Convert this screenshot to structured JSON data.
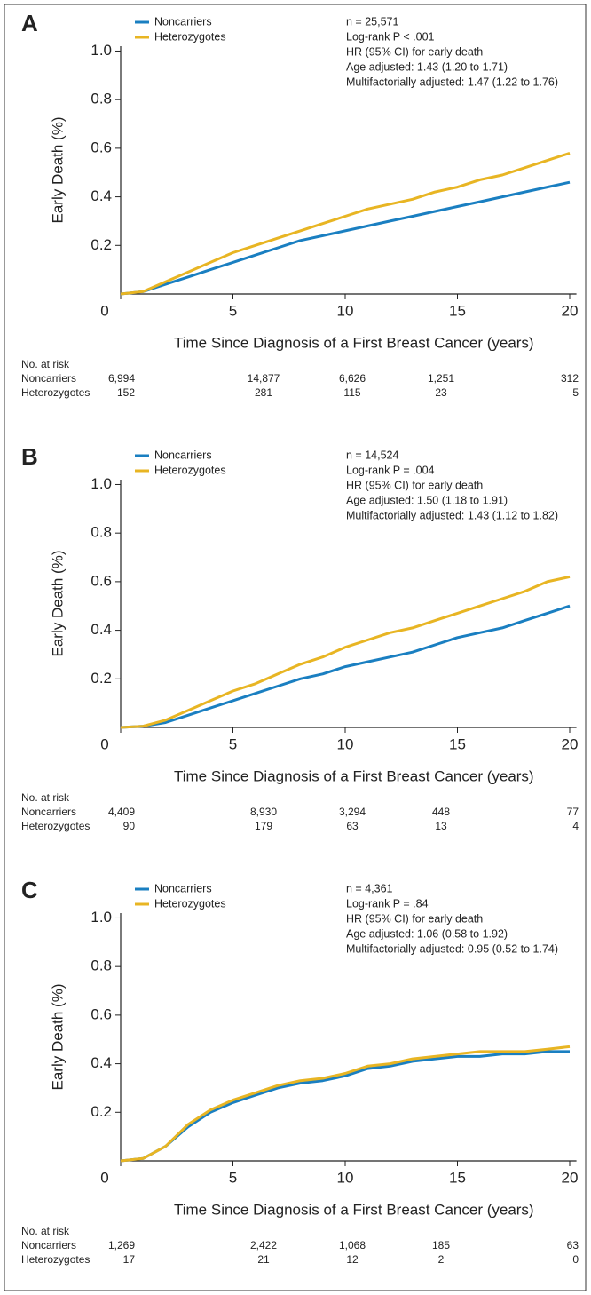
{
  "chart_data": [
    {
      "type": "line",
      "panel": "A",
      "x": [
        0,
        1,
        2,
        3,
        4,
        5,
        6,
        7,
        8,
        9,
        10,
        11,
        12,
        13,
        14,
        15,
        16,
        17,
        18,
        19,
        20
      ],
      "series": [
        {
          "name": "Noncarriers",
          "color": "#1a7fc1",
          "values": [
            0,
            0.01,
            0.04,
            0.07,
            0.1,
            0.13,
            0.16,
            0.19,
            0.22,
            0.24,
            0.26,
            0.28,
            0.3,
            0.32,
            0.34,
            0.36,
            0.38,
            0.4,
            0.42,
            0.44,
            0.46
          ]
        },
        {
          "name": "Heterozygotes",
          "color": "#e8b523",
          "values": [
            0,
            0.01,
            0.05,
            0.09,
            0.13,
            0.17,
            0.2,
            0.23,
            0.26,
            0.29,
            0.32,
            0.35,
            0.37,
            0.39,
            0.42,
            0.44,
            0.47,
            0.49,
            0.52,
            0.55,
            0.58
          ]
        }
      ],
      "xlabel": "Time Since Diagnosis of a First Breast Cancer (years)",
      "ylabel": "Early Death (%)",
      "xlim": [
        0,
        20.3
      ],
      "ylim": [
        0,
        1.02
      ],
      "xticks": [
        0,
        5,
        10,
        15,
        20
      ],
      "yticks": [
        0.2,
        0.4,
        0.6,
        0.8,
        {
          "value": 1,
          "label": "1.0"
        }
      ],
      "annotations": [
        "n = 25,571",
        "Log-rank P < .001",
        "HR (95% CI) for early death",
        "Age adjusted: 1.43 (1.20 to 1.71)",
        "Multifactorially adjusted: 1.47 (1.22 to 1.76)"
      ],
      "risk_table": {
        "title": "No. at risk",
        "rows": [
          {
            "name": "Noncarriers",
            "values": [
              "6,994",
              "14,877",
              "6,626",
              "1,251",
              "312"
            ]
          },
          {
            "name": "Heterozygotes",
            "values": [
              "152",
              "281",
              "115",
              "23",
              "5"
            ]
          }
        ]
      }
    },
    {
      "type": "line",
      "panel": "B",
      "x": [
        0,
        1,
        2,
        3,
        4,
        5,
        6,
        7,
        8,
        9,
        10,
        11,
        12,
        13,
        14,
        15,
        16,
        17,
        18,
        19,
        20
      ],
      "series": [
        {
          "name": "Noncarriers",
          "color": "#1a7fc1",
          "values": [
            0,
            0.005,
            0.02,
            0.05,
            0.08,
            0.11,
            0.14,
            0.17,
            0.2,
            0.22,
            0.25,
            0.27,
            0.29,
            0.31,
            0.34,
            0.37,
            0.39,
            0.41,
            0.44,
            0.47,
            0.5
          ]
        },
        {
          "name": "Heterozygotes",
          "color": "#e8b523",
          "values": [
            0,
            0.005,
            0.03,
            0.07,
            0.11,
            0.15,
            0.18,
            0.22,
            0.26,
            0.29,
            0.33,
            0.36,
            0.39,
            0.41,
            0.44,
            0.47,
            0.5,
            0.53,
            0.56,
            0.6,
            0.62
          ]
        }
      ],
      "xlabel": "Time Since Diagnosis of a First Breast Cancer (years)",
      "ylabel": "Early Death (%)",
      "xlim": [
        0,
        20.3
      ],
      "ylim": [
        0,
        1.02
      ],
      "xticks": [
        0,
        5,
        10,
        15,
        20
      ],
      "yticks": [
        0.2,
        0.4,
        0.6,
        0.8,
        {
          "value": 1,
          "label": "1.0"
        }
      ],
      "annotations": [
        "n = 14,524",
        "Log-rank P = .004",
        "HR (95% CI) for early death",
        "Age adjusted: 1.50 (1.18 to 1.91)",
        "Multifactorially adjusted: 1.43 (1.12 to 1.82)"
      ],
      "risk_table": {
        "title": "No. at risk",
        "rows": [
          {
            "name": "Noncarriers",
            "values": [
              "4,409",
              "8,930",
              "3,294",
              "448",
              "77"
            ]
          },
          {
            "name": "Heterozygotes",
            "values": [
              "90",
              "179",
              "63",
              "13",
              "4"
            ]
          }
        ]
      }
    },
    {
      "type": "line",
      "panel": "C",
      "x": [
        0,
        1,
        2,
        3,
        4,
        5,
        6,
        7,
        8,
        9,
        10,
        11,
        12,
        13,
        14,
        15,
        16,
        17,
        18,
        19,
        20
      ],
      "series": [
        {
          "name": "Noncarriers",
          "color": "#1a7fc1",
          "values": [
            0,
            0.01,
            0.06,
            0.14,
            0.2,
            0.24,
            0.27,
            0.3,
            0.32,
            0.33,
            0.35,
            0.38,
            0.39,
            0.41,
            0.42,
            0.43,
            0.43,
            0.44,
            0.44,
            0.45,
            0.45
          ]
        },
        {
          "name": "Heterozygotes",
          "color": "#e8b523",
          "values": [
            0,
            0.01,
            0.06,
            0.15,
            0.21,
            0.25,
            0.28,
            0.31,
            0.33,
            0.34,
            0.36,
            0.39,
            0.4,
            0.42,
            0.43,
            0.44,
            0.45,
            0.45,
            0.45,
            0.46,
            0.47
          ]
        }
      ],
      "xlabel": "Time Since Diagnosis of a First Breast Cancer (years)",
      "ylabel": "Early Death (%)",
      "xlim": [
        0,
        20.3
      ],
      "ylim": [
        0,
        1.02
      ],
      "xticks": [
        0,
        5,
        10,
        15,
        20
      ],
      "yticks": [
        0.2,
        0.4,
        0.6,
        0.8,
        {
          "value": 1,
          "label": "1.0"
        }
      ],
      "annotations": [
        "n = 4,361",
        "Log-rank P = .84",
        "HR (95% CI) for early death",
        "Age adjusted: 1.06 (0.58 to 1.92)",
        "Multifactorially adjusted: 0.95 (0.52 to 1.74)"
      ],
      "risk_table": {
        "title": "No. at risk",
        "rows": [
          {
            "name": "Noncarriers",
            "values": [
              "1,269",
              "2,422",
              "1,068",
              "185",
              "63"
            ]
          },
          {
            "name": "Heterozygotes",
            "values": [
              "17",
              "21",
              "12",
              "2",
              "0"
            ]
          }
        ]
      }
    }
  ]
}
